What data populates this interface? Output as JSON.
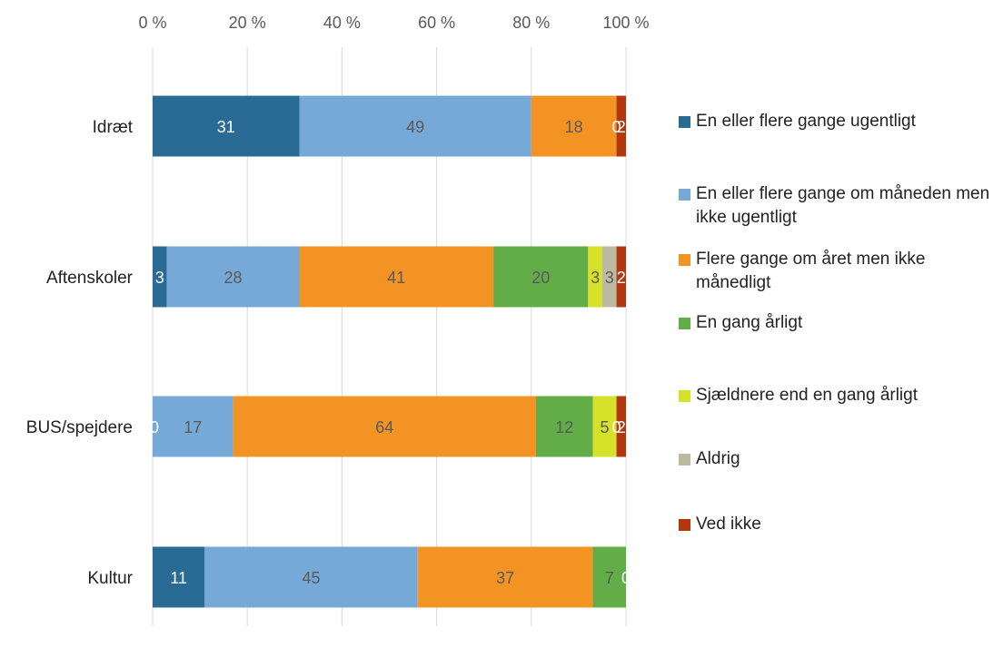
{
  "chart_data": {
    "type": "bar",
    "orientation": "horizontal",
    "stacked": true,
    "categories": [
      "Idræt",
      "Aftenskoler",
      "BUS/spejdere",
      "Kultur"
    ],
    "series": [
      {
        "name": "En eller flere gange ugentligt",
        "color": "#2a6b96",
        "values": [
          31,
          3,
          0,
          11
        ]
      },
      {
        "name": "En eller flere gange om måneden men ikke ugentligt",
        "color": "#77a9d8",
        "values": [
          49,
          28,
          17,
          45
        ]
      },
      {
        "name": "Flere gange om året men ikke månedligt",
        "color": "#f39324",
        "values": [
          18,
          41,
          64,
          37
        ]
      },
      {
        "name": "En gang årligt",
        "color": "#62ad47",
        "values": [
          0,
          20,
          12,
          7
        ]
      },
      {
        "name": "Sjældnere end en gang årligt",
        "color": "#d6e12a",
        "values": [
          0,
          3,
          5,
          0
        ]
      },
      {
        "name": "Aldrig",
        "color": "#bdbaa3",
        "values": [
          0,
          3,
          0,
          0
        ]
      },
      {
        "name": "Ved ikke",
        "color": "#b2360e",
        "values": [
          2,
          2,
          2,
          0
        ]
      }
    ],
    "visible_value_labels": [
      [
        31,
        49,
        18,
        0,
        2
      ],
      [
        3,
        28,
        41,
        20,
        3,
        3,
        2
      ],
      [
        0,
        17,
        64,
        12,
        5,
        0,
        2
      ],
      [
        11,
        45,
        37,
        7,
        0
      ]
    ],
    "x_ticks": [
      "0 %",
      "20 %",
      "40 %",
      "60 %",
      "80 %",
      "100 %"
    ],
    "xlim": [
      0,
      100
    ],
    "grid": true,
    "legend_position": "right",
    "title": "",
    "xlabel": "",
    "ylabel": ""
  }
}
